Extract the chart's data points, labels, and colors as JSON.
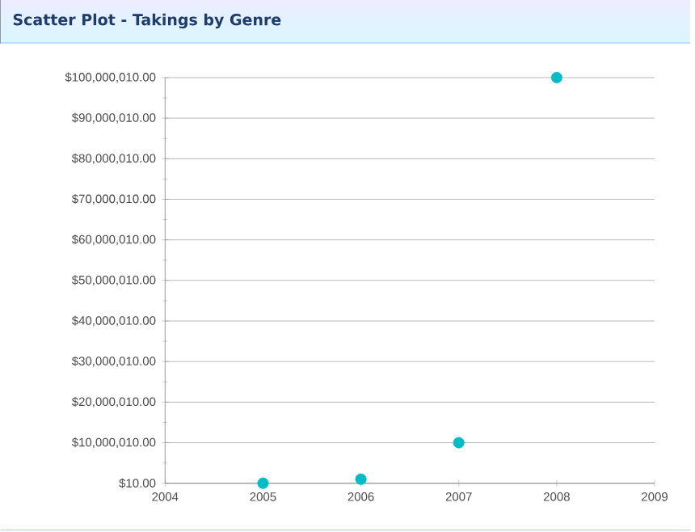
{
  "chart_data": {
    "type": "scatter",
    "title": "Scatter Plot - Takings by Genre",
    "x": [
      2005,
      2006,
      2007,
      2008
    ],
    "series": [
      {
        "color": "#00bcc4",
        "values": [
          10,
          1000000,
          10000000,
          100000000
        ]
      }
    ],
    "xlim": [
      2004,
      2009
    ],
    "xticks": [
      2004,
      2005,
      2006,
      2007,
      2008,
      2009
    ],
    "ylim": [
      10,
      100000010
    ],
    "yticks": [
      {
        "value": 10,
        "label": "$10.00"
      },
      {
        "value": 10000010,
        "label": "$10,000,010.00"
      },
      {
        "value": 20000010,
        "label": "$20,000,010.00"
      },
      {
        "value": 30000010,
        "label": "$30,000,010.00"
      },
      {
        "value": 40000010,
        "label": "$40,000,010.00"
      },
      {
        "value": 50000010,
        "label": "$50,000,010.00"
      },
      {
        "value": 60000010,
        "label": "$60,000,010.00"
      },
      {
        "value": 70000010,
        "label": "$70,000,010.00"
      },
      {
        "value": 80000010,
        "label": "$80,000,010.00"
      },
      {
        "value": 90000010,
        "label": "$90,000,010.00"
      },
      {
        "value": 100000010,
        "label": "$100,000,010.00"
      }
    ],
    "grid": "y"
  }
}
